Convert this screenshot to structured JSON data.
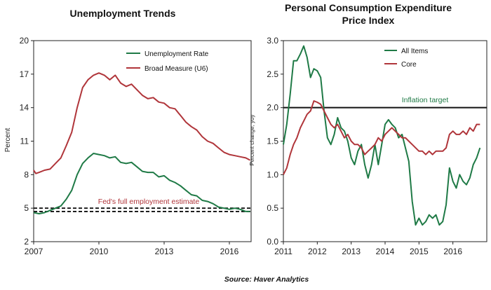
{
  "colors": {
    "green": "#1f7a46",
    "red": "#b0353a",
    "black": "#111111",
    "grid": "#d9d9d9"
  },
  "source": "Source: Haver Analytics",
  "chart_data": [
    {
      "type": "line",
      "title": "Unemployment Trends",
      "xlabel": "",
      "ylabel": "Percent",
      "xlim": [
        2007,
        2017
      ],
      "ylim": [
        2,
        20
      ],
      "yticks": [
        2,
        5,
        8,
        11,
        14,
        17,
        20
      ],
      "xticks": [
        2007,
        2010,
        2013,
        2016
      ],
      "grid": "none",
      "legend": "top-right",
      "series": [
        {
          "name": "Unemployment Rate",
          "color": "green",
          "points": [
            [
              2007.0,
              4.6
            ],
            [
              2007.25,
              4.5
            ],
            [
              2007.5,
              4.6
            ],
            [
              2007.75,
              4.8
            ],
            [
              2008.0,
              5.0
            ],
            [
              2008.25,
              5.2
            ],
            [
              2008.5,
              5.8
            ],
            [
              2008.75,
              6.6
            ],
            [
              2009.0,
              8.0
            ],
            [
              2009.25,
              9.0
            ],
            [
              2009.5,
              9.5
            ],
            [
              2009.75,
              9.9
            ],
            [
              2010.0,
              9.8
            ],
            [
              2010.25,
              9.7
            ],
            [
              2010.5,
              9.5
            ],
            [
              2010.75,
              9.6
            ],
            [
              2011.0,
              9.1
            ],
            [
              2011.25,
              9.0
            ],
            [
              2011.5,
              9.1
            ],
            [
              2011.75,
              8.7
            ],
            [
              2012.0,
              8.3
            ],
            [
              2012.25,
              8.2
            ],
            [
              2012.5,
              8.2
            ],
            [
              2012.75,
              7.8
            ],
            [
              2013.0,
              7.9
            ],
            [
              2013.25,
              7.5
            ],
            [
              2013.5,
              7.3
            ],
            [
              2013.75,
              7.0
            ],
            [
              2014.0,
              6.6
            ],
            [
              2014.25,
              6.2
            ],
            [
              2014.5,
              6.1
            ],
            [
              2014.75,
              5.7
            ],
            [
              2015.0,
              5.6
            ],
            [
              2015.25,
              5.4
            ],
            [
              2015.5,
              5.1
            ],
            [
              2015.75,
              5.0
            ],
            [
              2016.0,
              4.9
            ],
            [
              2016.25,
              5.0
            ],
            [
              2016.5,
              4.9
            ],
            [
              2016.75,
              4.7
            ],
            [
              2016.95,
              4.7
            ]
          ]
        },
        {
          "name": "Broad Measure (U6)",
          "color": "red",
          "points": [
            [
              2007.0,
              8.4
            ],
            [
              2007.1,
              8.1
            ],
            [
              2007.25,
              8.2
            ],
            [
              2007.5,
              8.4
            ],
            [
              2007.75,
              8.5
            ],
            [
              2008.0,
              9.0
            ],
            [
              2008.25,
              9.5
            ],
            [
              2008.5,
              10.6
            ],
            [
              2008.75,
              11.8
            ],
            [
              2009.0,
              14.0
            ],
            [
              2009.25,
              15.8
            ],
            [
              2009.5,
              16.5
            ],
            [
              2009.75,
              16.9
            ],
            [
              2010.0,
              17.1
            ],
            [
              2010.25,
              16.9
            ],
            [
              2010.5,
              16.5
            ],
            [
              2010.75,
              16.9
            ],
            [
              2011.0,
              16.2
            ],
            [
              2011.25,
              15.9
            ],
            [
              2011.5,
              16.1
            ],
            [
              2011.75,
              15.6
            ],
            [
              2012.0,
              15.1
            ],
            [
              2012.25,
              14.8
            ],
            [
              2012.5,
              14.9
            ],
            [
              2012.75,
              14.5
            ],
            [
              2013.0,
              14.4
            ],
            [
              2013.25,
              14.0
            ],
            [
              2013.5,
              13.9
            ],
            [
              2013.75,
              13.3
            ],
            [
              2014.0,
              12.7
            ],
            [
              2014.25,
              12.3
            ],
            [
              2014.5,
              12.0
            ],
            [
              2014.75,
              11.4
            ],
            [
              2015.0,
              11.0
            ],
            [
              2015.25,
              10.8
            ],
            [
              2015.5,
              10.4
            ],
            [
              2015.75,
              10.0
            ],
            [
              2016.0,
              9.8
            ],
            [
              2016.25,
              9.7
            ],
            [
              2016.5,
              9.6
            ],
            [
              2016.75,
              9.5
            ],
            [
              2016.95,
              9.3
            ]
          ]
        }
      ],
      "reference_lines": [
        {
          "label": "Fed's full employment estimate",
          "values": [
            4.7,
            5.0
          ],
          "style": "dashed",
          "color": "black",
          "label_color": "red"
        }
      ]
    },
    {
      "type": "line",
      "title": "Personal Consumption Expenditure Price Index",
      "title_lines": [
        "Personal Consumption Expenditure",
        "Price Index"
      ],
      "xlabel": "",
      "ylabel": "Percent change, yoy",
      "xlim": [
        2011,
        2017
      ],
      "ylim": [
        0.0,
        3.0
      ],
      "yticks": [
        "0.0",
        "0.5",
        "1.0",
        "1.5",
        "2.0",
        "2.5",
        "3.0"
      ],
      "xticks": [
        2011,
        2012,
        2013,
        2014,
        2015,
        2016
      ],
      "grid": "none",
      "legend": "top-right",
      "series": [
        {
          "name": "All Items",
          "color": "green",
          "points": [
            [
              2011.0,
              1.45
            ],
            [
              2011.1,
              1.75
            ],
            [
              2011.2,
              2.2
            ],
            [
              2011.3,
              2.7
            ],
            [
              2011.4,
              2.7
            ],
            [
              2011.5,
              2.8
            ],
            [
              2011.6,
              2.92
            ],
            [
              2011.7,
              2.75
            ],
            [
              2011.8,
              2.45
            ],
            [
              2011.9,
              2.58
            ],
            [
              2012.0,
              2.55
            ],
            [
              2012.1,
              2.45
            ],
            [
              2012.2,
              1.95
            ],
            [
              2012.3,
              1.55
            ],
            [
              2012.4,
              1.45
            ],
            [
              2012.5,
              1.6
            ],
            [
              2012.6,
              1.85
            ],
            [
              2012.7,
              1.7
            ],
            [
              2012.8,
              1.65
            ],
            [
              2012.9,
              1.5
            ],
            [
              2013.0,
              1.25
            ],
            [
              2013.1,
              1.15
            ],
            [
              2013.2,
              1.35
            ],
            [
              2013.3,
              1.45
            ],
            [
              2013.4,
              1.15
            ],
            [
              2013.5,
              0.95
            ],
            [
              2013.6,
              1.15
            ],
            [
              2013.7,
              1.45
            ],
            [
              2013.8,
              1.15
            ],
            [
              2013.9,
              1.45
            ],
            [
              2014.0,
              1.75
            ],
            [
              2014.1,
              1.82
            ],
            [
              2014.2,
              1.75
            ],
            [
              2014.3,
              1.7
            ],
            [
              2014.4,
              1.55
            ],
            [
              2014.5,
              1.6
            ],
            [
              2014.6,
              1.4
            ],
            [
              2014.7,
              1.2
            ],
            [
              2014.8,
              0.6
            ],
            [
              2014.9,
              0.25
            ],
            [
              2015.0,
              0.35
            ],
            [
              2015.1,
              0.25
            ],
            [
              2015.2,
              0.3
            ],
            [
              2015.3,
              0.4
            ],
            [
              2015.4,
              0.35
            ],
            [
              2015.5,
              0.4
            ],
            [
              2015.6,
              0.25
            ],
            [
              2015.7,
              0.3
            ],
            [
              2015.8,
              0.55
            ],
            [
              2015.9,
              1.1
            ],
            [
              2016.0,
              0.9
            ],
            [
              2016.1,
              0.8
            ],
            [
              2016.2,
              1.0
            ],
            [
              2016.3,
              0.9
            ],
            [
              2016.4,
              0.85
            ],
            [
              2016.5,
              0.95
            ],
            [
              2016.6,
              1.15
            ],
            [
              2016.7,
              1.25
            ],
            [
              2016.8,
              1.4
            ]
          ]
        },
        {
          "name": "Core",
          "color": "red",
          "points": [
            [
              2011.0,
              1.0
            ],
            [
              2011.1,
              1.1
            ],
            [
              2011.2,
              1.3
            ],
            [
              2011.3,
              1.45
            ],
            [
              2011.4,
              1.55
            ],
            [
              2011.5,
              1.7
            ],
            [
              2011.6,
              1.8
            ],
            [
              2011.7,
              1.9
            ],
            [
              2011.8,
              1.95
            ],
            [
              2011.9,
              2.1
            ],
            [
              2012.0,
              2.08
            ],
            [
              2012.1,
              2.05
            ],
            [
              2012.2,
              1.95
            ],
            [
              2012.3,
              1.85
            ],
            [
              2012.4,
              1.75
            ],
            [
              2012.5,
              1.7
            ],
            [
              2012.6,
              1.75
            ],
            [
              2012.7,
              1.65
            ],
            [
              2012.8,
              1.55
            ],
            [
              2012.9,
              1.6
            ],
            [
              2013.0,
              1.5
            ],
            [
              2013.1,
              1.45
            ],
            [
              2013.2,
              1.45
            ],
            [
              2013.3,
              1.4
            ],
            [
              2013.4,
              1.3
            ],
            [
              2013.5,
              1.35
            ],
            [
              2013.6,
              1.4
            ],
            [
              2013.7,
              1.45
            ],
            [
              2013.8,
              1.55
            ],
            [
              2013.9,
              1.5
            ],
            [
              2014.0,
              1.6
            ],
            [
              2014.1,
              1.65
            ],
            [
              2014.2,
              1.7
            ],
            [
              2014.3,
              1.65
            ],
            [
              2014.4,
              1.6
            ],
            [
              2014.5,
              1.55
            ],
            [
              2014.6,
              1.55
            ],
            [
              2014.7,
              1.5
            ],
            [
              2014.8,
              1.45
            ],
            [
              2014.9,
              1.4
            ],
            [
              2015.0,
              1.35
            ],
            [
              2015.1,
              1.35
            ],
            [
              2015.2,
              1.3
            ],
            [
              2015.3,
              1.35
            ],
            [
              2015.4,
              1.3
            ],
            [
              2015.5,
              1.35
            ],
            [
              2015.6,
              1.35
            ],
            [
              2015.7,
              1.35
            ],
            [
              2015.8,
              1.4
            ],
            [
              2015.9,
              1.6
            ],
            [
              2016.0,
              1.65
            ],
            [
              2016.1,
              1.6
            ],
            [
              2016.2,
              1.6
            ],
            [
              2016.3,
              1.65
            ],
            [
              2016.4,
              1.6
            ],
            [
              2016.5,
              1.7
            ],
            [
              2016.6,
              1.65
            ],
            [
              2016.7,
              1.75
            ],
            [
              2016.8,
              1.75
            ]
          ]
        }
      ],
      "reference_lines": [
        {
          "label": "Inflation target",
          "values": [
            2.0
          ],
          "style": "solid",
          "color": "black",
          "label_color": "green"
        }
      ]
    }
  ]
}
